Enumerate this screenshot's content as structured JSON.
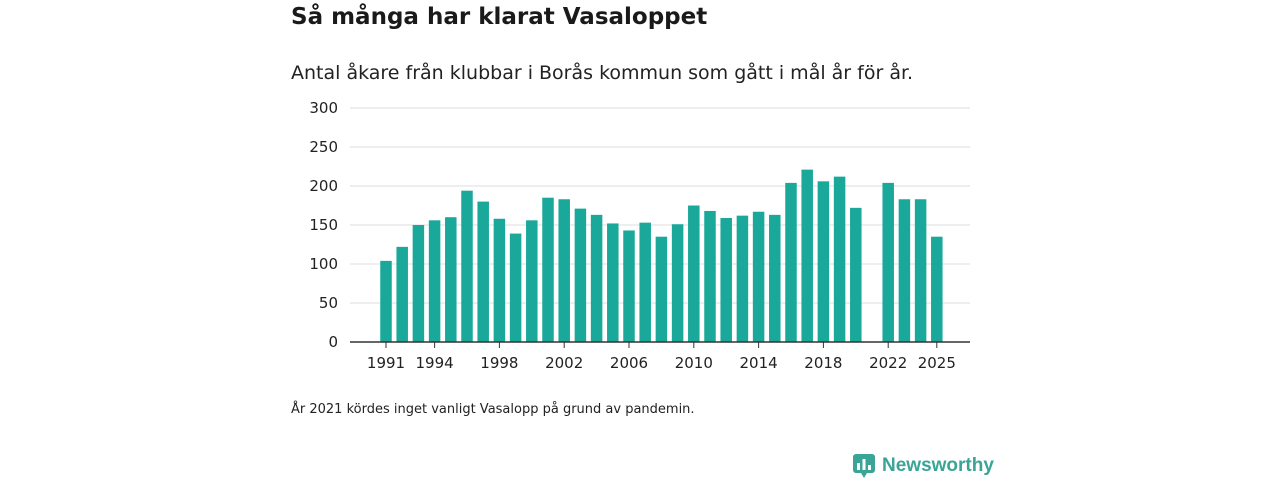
{
  "header": {
    "title": "Så många har klarat Vasaloppet",
    "subtitle": "Antal åkare från klubbar i Borås kommun som gått i mål år för år."
  },
  "footer": {
    "footnote": "År 2021 kördes inget vanligt Vasalopp på grund av pandemin.",
    "brand_name": "Newsworthy",
    "brand_icon": "newsworthy-logo-icon"
  },
  "colors": {
    "bar": "#1aa89a",
    "grid": "#dddddd",
    "axis": "#333333",
    "brand": "#3aa597"
  },
  "chart_data": {
    "type": "bar",
    "title": "Så många har klarat Vasaloppet",
    "subtitle": "Antal åkare från klubbar i Borås kommun som gått i mål år för år.",
    "xlabel": "",
    "ylabel": "",
    "ylim": [
      0,
      300
    ],
    "yticks": [
      0,
      50,
      100,
      150,
      200,
      250,
      300
    ],
    "grid": true,
    "categories": [
      1991,
      1992,
      1993,
      1994,
      1995,
      1996,
      1997,
      1998,
      1999,
      2000,
      2001,
      2002,
      2003,
      2004,
      2005,
      2006,
      2007,
      2008,
      2009,
      2010,
      2011,
      2012,
      2013,
      2014,
      2015,
      2016,
      2017,
      2018,
      2019,
      2020,
      2021,
      2022,
      2023,
      2024,
      2025
    ],
    "values": [
      104,
      122,
      150,
      156,
      160,
      194,
      180,
      158,
      139,
      156,
      185,
      183,
      171,
      163,
      152,
      143,
      153,
      135,
      151,
      175,
      168,
      159,
      162,
      167,
      163,
      204,
      221,
      206,
      212,
      172,
      null,
      204,
      183,
      183,
      135
    ],
    "xtick_labels": [
      "1991",
      "1994",
      "1998",
      "2002",
      "2006",
      "2010",
      "2014",
      "2018",
      "2022",
      "2025"
    ]
  }
}
